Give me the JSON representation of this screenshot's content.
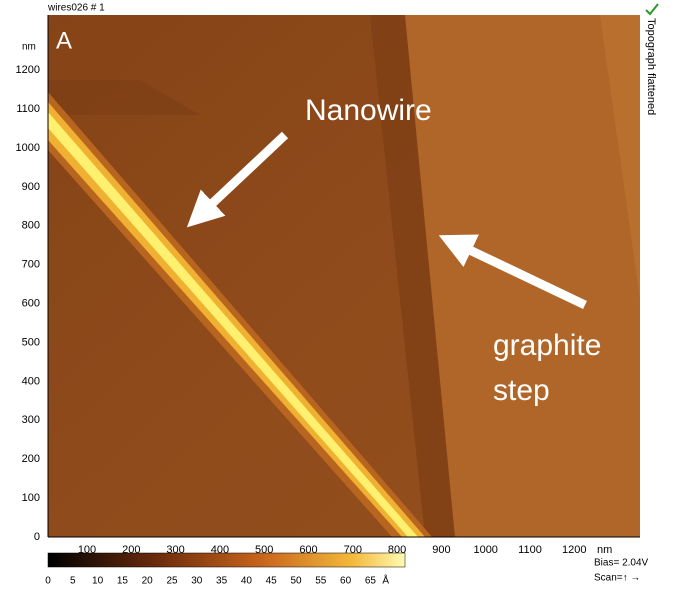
{
  "header": {
    "file": "wires026 # 1",
    "status": "Topograph flattened",
    "panel": "A"
  },
  "axes": {
    "y_unit": "nm",
    "x_unit": "nm",
    "yticks": [
      0,
      100,
      200,
      300,
      400,
      500,
      600,
      700,
      800,
      900,
      1000,
      1100,
      1200
    ],
    "xticks": [
      100,
      200,
      300,
      400,
      500,
      600,
      700,
      800,
      900,
      1000,
      1100,
      1200
    ]
  },
  "colorbar": {
    "ticks": [
      0,
      5,
      10,
      15,
      20,
      25,
      30,
      35,
      40,
      45,
      50,
      55,
      60,
      65
    ],
    "unit": "Å"
  },
  "annotations": {
    "nanowire": "Nanowire",
    "graphite_line1": "graphite",
    "graphite_line2": "step"
  },
  "footer": {
    "bias": "Bias= 2.04V",
    "scan": "Scan=↑ →"
  }
}
